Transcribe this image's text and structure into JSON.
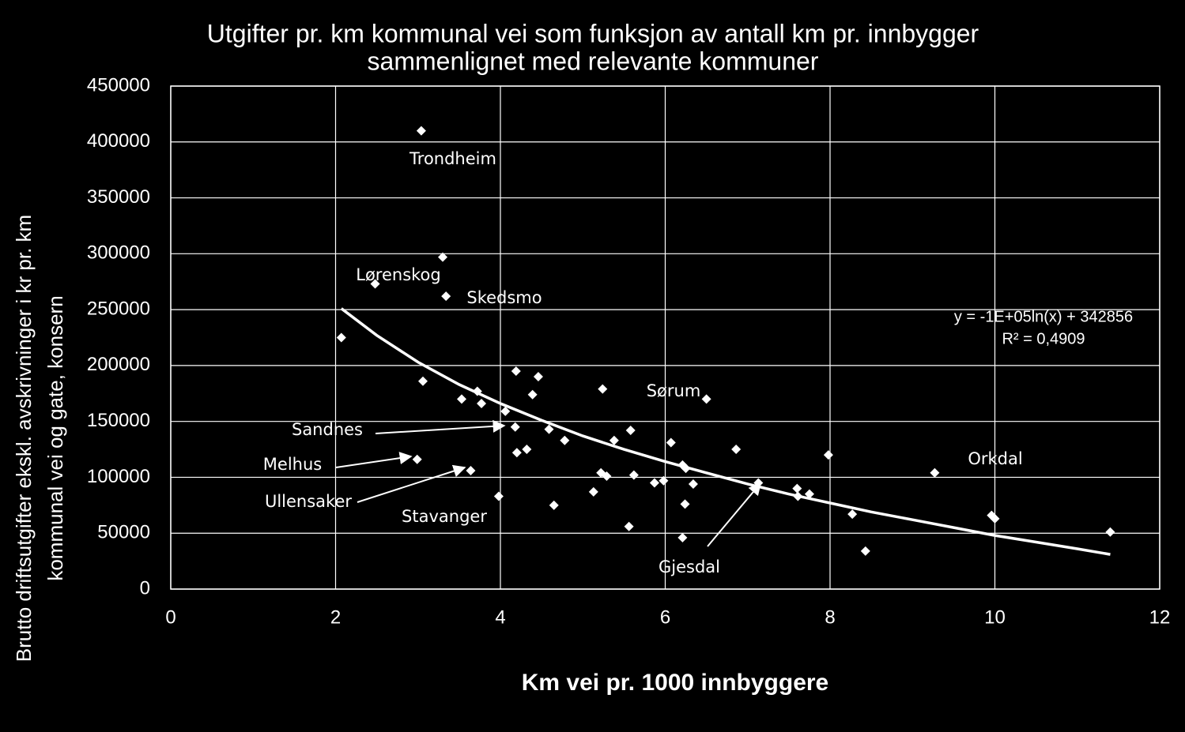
{
  "chart_data": {
    "type": "scatter",
    "title": [
      "Utgifter pr. km kommunal vei som funksjon av antall km pr. innbygger",
      "sammenlignet med relevante kommuner"
    ],
    "xlabel": "Km vei pr. 1000 innbyggere",
    "ylabel": [
      "Brutto driftsutgifter ekskl. avskrivninger  i kr pr. km",
      "kommunal  vei og gate, konsern"
    ],
    "xlim": [
      0,
      12
    ],
    "xticks": [
      0,
      2,
      4,
      6,
      8,
      10,
      12
    ],
    "ylim": [
      0,
      450000
    ],
    "yticks": [
      0,
      50000,
      100000,
      150000,
      200000,
      250000,
      300000,
      350000,
      400000,
      450000
    ],
    "grid": true,
    "points": {
      "color": "#ffffff",
      "x": [
        3.04,
        3.3,
        2.48,
        3.34,
        2.07,
        3.06,
        3.53,
        3.72,
        3.77,
        4.06,
        4.19,
        4.46,
        4.39,
        4.18,
        4.59,
        4.78,
        4.2,
        4.32,
        2.99,
        3.64,
        3.98,
        4.65,
        5.24,
        5.38,
        5.58,
        5.22,
        5.29,
        5.62,
        5.13,
        5.56,
        5.87,
        5.98,
        6.07,
        6.21,
        6.25,
        6.34,
        6.24,
        6.21,
        6.5,
        6.86,
        7.13,
        7.6,
        7.61,
        7.75,
        7.98,
        8.27,
        8.43,
        9.27,
        9.96,
        10.0,
        11.4
      ],
      "values": [
        410000,
        297000,
        273000,
        262000,
        225000,
        186000,
        170000,
        177000,
        166000,
        159000,
        195000,
        190000,
        174000,
        145000,
        143000,
        133000,
        122000,
        125000,
        116000,
        106000,
        83000,
        75000,
        179000,
        133000,
        142000,
        104000,
        101000,
        102000,
        87000,
        56000,
        95000,
        97000,
        131000,
        111000,
        108000,
        94000,
        76000,
        46000,
        170000,
        125000,
        95000,
        90000,
        83000,
        85000,
        120000,
        67000,
        34000,
        104000,
        66000,
        63000,
        51000
      ]
    },
    "trendline": {
      "color": "#ffffff",
      "x": [
        2.07,
        2.5,
        3,
        3.5,
        4,
        4.5,
        5,
        5.5,
        6,
        6.5,
        7,
        7.5,
        8,
        8.5,
        9,
        9.5,
        10,
        10.5,
        11,
        11.4
      ],
      "values": [
        251000,
        227000,
        203000,
        183000,
        166000,
        151000,
        137000,
        125000,
        114000,
        104000,
        94000,
        85000,
        77000,
        69000,
        62000,
        55000,
        48000,
        42000,
        36000,
        31000
      ]
    },
    "equation": "y = -1E+05ln(x) + 342856",
    "r_squared": "R² = 0,4909",
    "annotations": [
      "Trondheim",
      "Lørenskog",
      "Skedsmo",
      "Sørum",
      "Sandnes",
      "Melhus",
      "Ullensaker",
      "Stavanger",
      "Gjesdal",
      "Orkdal"
    ]
  }
}
